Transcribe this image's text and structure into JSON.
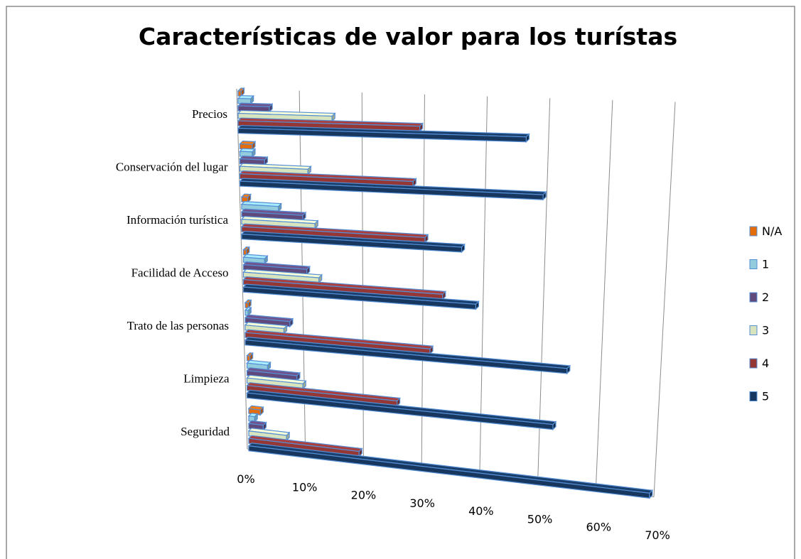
{
  "chart_data": {
    "type": "bar3d_horizontal",
    "title": "Características de valor para los turístas",
    "categories": [
      "Precios",
      "Conservación del lugar",
      "Información turística",
      "Facilidad de Acceso",
      "Trato de las personas",
      "Limpieza",
      "Seguridad"
    ],
    "series": [
      {
        "name": "N/A",
        "color": "#e46c0a",
        "values": [
          0.5,
          2,
          1,
          0.5,
          0.5,
          0.5,
          2
        ]
      },
      {
        "name": "1",
        "color": "#93cddd",
        "values": [
          2,
          2,
          6,
          3.5,
          0.5,
          3.5,
          1
        ]
      },
      {
        "name": "2",
        "color": "#604a7b",
        "values": [
          5,
          4,
          10,
          10.5,
          7.5,
          8.5,
          2.5
        ]
      },
      {
        "name": "3",
        "color": "#d7e4bd",
        "values": [
          15,
          11,
          12,
          12.5,
          6.5,
          9.5,
          6.5
        ]
      },
      {
        "name": "4",
        "color": "#953735",
        "values": [
          29,
          28,
          30,
          33,
          31,
          25.5,
          19
        ]
      },
      {
        "name": "5",
        "color": "#17375e",
        "values": [
          46,
          49,
          36,
          38.5,
          54,
          52,
          69
        ]
      }
    ],
    "xlim": [
      0,
      70
    ],
    "xticks": [
      {
        "value": 0,
        "label": "0%"
      },
      {
        "value": 10,
        "label": "10%"
      },
      {
        "value": 20,
        "label": "20%"
      },
      {
        "value": 30,
        "label": "30%"
      },
      {
        "value": 40,
        "label": "40%"
      },
      {
        "value": 50,
        "label": "50%"
      },
      {
        "value": 60,
        "label": "60%"
      },
      {
        "value": 70,
        "label": "70%"
      }
    ],
    "grid": true,
    "legend": "right"
  }
}
